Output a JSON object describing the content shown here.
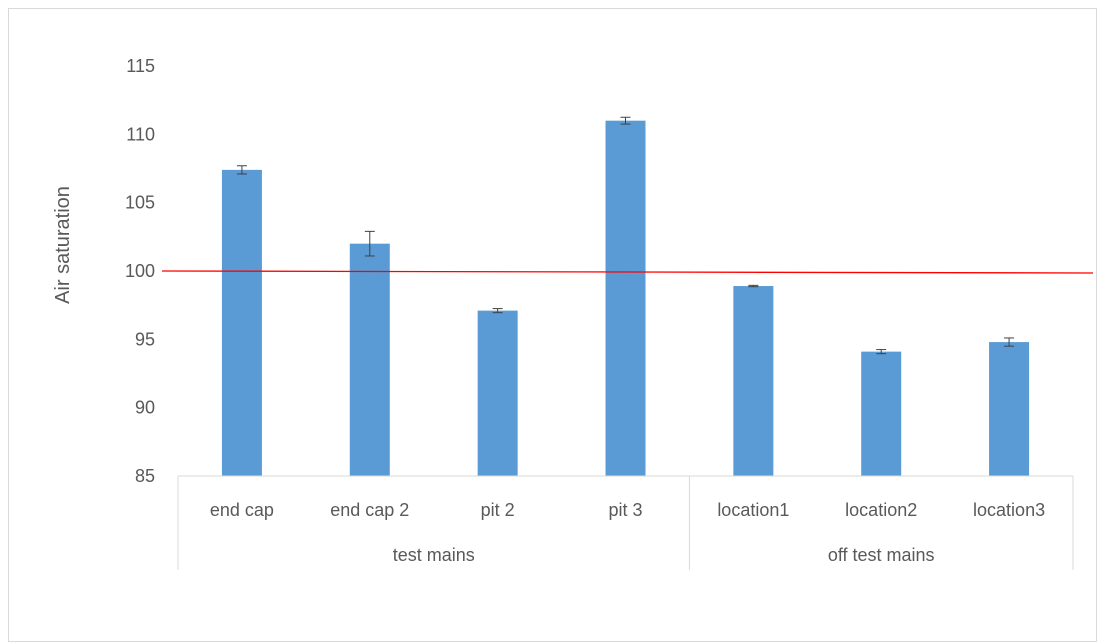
{
  "chart_data": {
    "type": "bar",
    "title": "",
    "ylabel": "Air saturation",
    "xlabel": "",
    "ylim": [
      85,
      115
    ],
    "yticks": [
      85,
      90,
      95,
      100,
      105,
      110,
      115
    ],
    "categories": [
      "end cap",
      "end cap 2",
      "pit 2",
      "pit 3",
      "location1",
      "location2",
      "location3"
    ],
    "groups": [
      {
        "label": "test mains",
        "categories": [
          "end cap",
          "end cap 2",
          "pit 2",
          "pit 3"
        ]
      },
      {
        "label": "off test mains",
        "categories": [
          "location1",
          "location2",
          "location3"
        ]
      }
    ],
    "values": [
      107.4,
      102.0,
      97.1,
      111.0,
      98.9,
      94.1,
      94.8
    ],
    "errors": [
      0.3,
      0.9,
      0.15,
      0.25,
      0.05,
      0.15,
      0.3
    ],
    "reference_line": 100,
    "grid": false,
    "legend": "none",
    "colors": {
      "bar": "#5b9bd5",
      "reference_line": "#ff0000",
      "axis": "#d9d9d9",
      "text": "#595959",
      "error_bar": "#404040"
    }
  }
}
